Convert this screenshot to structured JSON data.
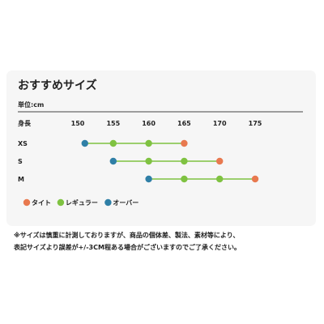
{
  "chart_data": {
    "type": "range-dot",
    "title": "おすすめサイズ",
    "unit_label": "単位:cm",
    "axis_label": "身長",
    "ticks": [
      150,
      155,
      160,
      165,
      170,
      175
    ],
    "xlim": [
      150,
      175
    ],
    "rows": [
      {
        "label": "XS",
        "points": [
          {
            "x": 151,
            "fit": "over"
          },
          {
            "x": 155,
            "fit": "regular"
          },
          {
            "x": 160,
            "fit": "regular"
          },
          {
            "x": 165,
            "fit": "tight"
          }
        ]
      },
      {
        "label": "S",
        "points": [
          {
            "x": 155,
            "fit": "over"
          },
          {
            "x": 160,
            "fit": "regular"
          },
          {
            "x": 165,
            "fit": "regular"
          },
          {
            "x": 170,
            "fit": "tight"
          }
        ]
      },
      {
        "label": "M",
        "points": [
          {
            "x": 160,
            "fit": "over"
          },
          {
            "x": 165,
            "fit": "regular"
          },
          {
            "x": 170,
            "fit": "regular"
          },
          {
            "x": 175,
            "fit": "tight"
          }
        ]
      }
    ],
    "legend": [
      {
        "key": "tight",
        "label": "タイト",
        "color": "#e8794f"
      },
      {
        "key": "regular",
        "label": "レギュラー",
        "color": "#7fc241"
      },
      {
        "key": "over",
        "label": "オーバー",
        "color": "#2f7fa6"
      }
    ],
    "line_color": "#7fc241"
  },
  "note": {
    "line1": "※サイズは慎重に計測しておりますが、商品の個体差、製法、素材等により、",
    "line2": "表記サイズより誤差が+/-3CM程ある場合がございますのでご了承ください。"
  }
}
